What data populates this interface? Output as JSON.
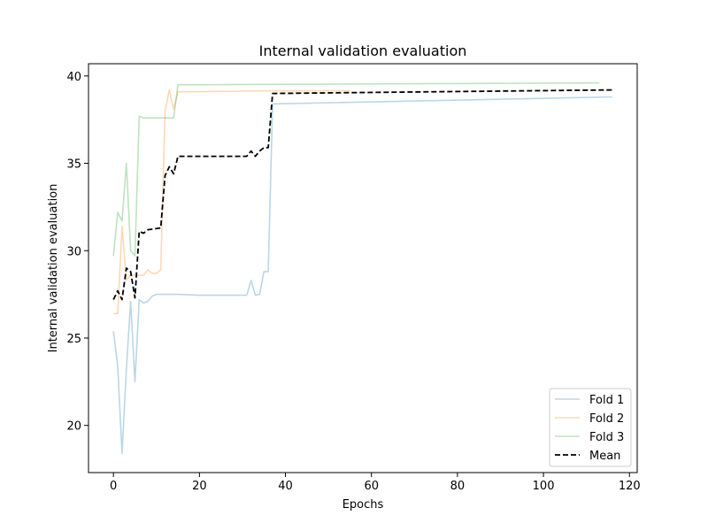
{
  "chart_data": {
    "type": "line",
    "title": "Internal validation evaluation",
    "xlabel": "Epochs",
    "ylabel": "Internal validation evaluation",
    "xlim": [
      -5.8,
      121.8
    ],
    "ylim": [
      17.3,
      40.7
    ],
    "xticks": [
      0,
      20,
      40,
      60,
      80,
      100,
      120
    ],
    "yticks": [
      20,
      25,
      30,
      35,
      40
    ],
    "grid": false,
    "legend_position": "bottom-right",
    "series": [
      {
        "name": "Fold 1",
        "color": "#1f77b4",
        "opacity": 0.3,
        "dash": "solid",
        "x": [
          0,
          1,
          2,
          3,
          4,
          5,
          6,
          7,
          8,
          9,
          10,
          15,
          20,
          25,
          31,
          32,
          33,
          34,
          35,
          36,
          37,
          116
        ],
        "y": [
          25.4,
          23.4,
          18.4,
          23.2,
          27.1,
          22.5,
          27.2,
          27.0,
          27.1,
          27.4,
          27.5,
          27.5,
          27.45,
          27.45,
          27.45,
          28.3,
          27.45,
          27.5,
          28.8,
          28.8,
          38.4,
          38.8
        ]
      },
      {
        "name": "Fold 2",
        "color": "#ff7f0e",
        "opacity": 0.3,
        "dash": "solid",
        "x": [
          0,
          1,
          2,
          3,
          4,
          5,
          6,
          7,
          8,
          9,
          10,
          11,
          12,
          13,
          14,
          15,
          20,
          37,
          55
        ],
        "y": [
          26.4,
          26.4,
          31.4,
          28.3,
          28.6,
          28.6,
          28.6,
          28.6,
          28.9,
          28.7,
          28.7,
          28.9,
          38.0,
          39.2,
          38.1,
          39.1,
          39.1,
          39.15,
          39.15
        ]
      },
      {
        "name": "Fold 3",
        "color": "#2ca02c",
        "opacity": 0.3,
        "dash": "solid",
        "x": [
          0,
          1,
          2,
          3,
          4,
          5,
          6,
          7,
          8,
          9,
          10,
          14,
          15,
          20,
          113
        ],
        "y": [
          29.7,
          32.2,
          31.7,
          35.0,
          30.0,
          29.7,
          37.7,
          37.6,
          37.6,
          37.6,
          37.6,
          37.6,
          39.5,
          39.5,
          39.6
        ]
      },
      {
        "name": "Mean",
        "color": "#000000",
        "opacity": 1,
        "dash": "dashed",
        "x": [
          0,
          1,
          2,
          3,
          4,
          5,
          6,
          7,
          8,
          11,
          12,
          13,
          14,
          15,
          20,
          31,
          32,
          33,
          34,
          35,
          36,
          37,
          116
        ],
        "y": [
          27.2,
          27.7,
          27.2,
          29.0,
          28.8,
          27.3,
          31.1,
          31.0,
          31.2,
          31.3,
          34.3,
          34.8,
          34.4,
          35.4,
          35.4,
          35.4,
          35.7,
          35.4,
          35.7,
          35.9,
          35.9,
          39.0,
          39.2
        ]
      }
    ]
  }
}
